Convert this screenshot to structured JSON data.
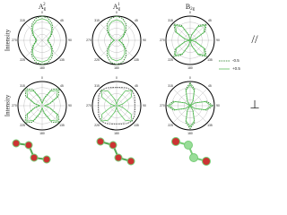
{
  "chart_data": [
    {
      "type": "polar",
      "title": "A",
      "title_sub": "g",
      "title_sup": "2",
      "ylabel": "Intensity",
      "annotation": "//",
      "theta": [
        0,
        15,
        30,
        45,
        60,
        75,
        90,
        105,
        120,
        135,
        150,
        165,
        180,
        195,
        210,
        225,
        240,
        255,
        270,
        285,
        300,
        315,
        330,
        345
      ],
      "thetaticks": [
        0,
        45,
        90,
        135,
        180,
        225,
        270,
        315
      ],
      "rlim": [
        0,
        1
      ],
      "rticks": [
        0.25,
        0.5,
        0.75,
        1
      ],
      "series": [
        {
          "name": "-0.5",
          "color": "#1f7a1f",
          "dash": true,
          "values": [
            1,
            0.95,
            0.81,
            0.63,
            0.44,
            0.3,
            0.25,
            0.3,
            0.44,
            0.63,
            0.81,
            0.95,
            1,
            0.95,
            0.81,
            0.63,
            0.44,
            0.3,
            0.25,
            0.3,
            0.44,
            0.63,
            0.81,
            0.95
          ]
        },
        {
          "name": "+0.5",
          "color": "#5cc15c",
          "dash": false,
          "values": [
            0.9,
            0.85,
            0.73,
            0.56,
            0.4,
            0.27,
            0.22,
            0.27,
            0.4,
            0.56,
            0.73,
            0.85,
            0.9,
            0.85,
            0.73,
            0.56,
            0.4,
            0.27,
            0.22,
            0.27,
            0.4,
            0.56,
            0.73,
            0.85
          ]
        }
      ]
    },
    {
      "type": "polar",
      "title": "A",
      "title_sub": "g",
      "title_sup": "1",
      "theta": [
        0,
        15,
        30,
        45,
        60,
        75,
        90,
        105,
        120,
        135,
        150,
        165,
        180,
        195,
        210,
        225,
        240,
        255,
        270,
        285,
        300,
        315,
        330,
        345
      ],
      "thetaticks": [
        0,
        45,
        90,
        135,
        180,
        225,
        270,
        315
      ],
      "rlim": [
        0,
        1
      ],
      "rticks": [
        0.25,
        0.5,
        0.75,
        1
      ],
      "series": [
        {
          "name": "-0.5",
          "color": "#1f7a1f",
          "dash": true,
          "values": [
            1,
            0.94,
            0.78,
            0.55,
            0.33,
            0.16,
            0.1,
            0.16,
            0.33,
            0.55,
            0.78,
            0.94,
            1,
            0.94,
            0.78,
            0.55,
            0.33,
            0.16,
            0.1,
            0.16,
            0.33,
            0.55,
            0.78,
            0.94
          ]
        },
        {
          "name": "+0.5",
          "color": "#5cc15c",
          "dash": false,
          "values": [
            0.85,
            0.8,
            0.66,
            0.47,
            0.28,
            0.14,
            0.08,
            0.14,
            0.28,
            0.47,
            0.66,
            0.8,
            0.85,
            0.8,
            0.66,
            0.47,
            0.28,
            0.14,
            0.08,
            0.14,
            0.28,
            0.47,
            0.66,
            0.8
          ]
        }
      ]
    },
    {
      "type": "polar",
      "title": "B",
      "title_sub": "2g",
      "legend": true,
      "theta": [
        0,
        15,
        30,
        45,
        60,
        75,
        90,
        105,
        120,
        135,
        150,
        165,
        180,
        195,
        210,
        225,
        240,
        255,
        270,
        285,
        300,
        315,
        330,
        345
      ],
      "thetaticks": [
        0,
        45,
        90,
        135,
        180,
        225,
        270,
        315
      ],
      "rlim": [
        0,
        1
      ],
      "rticks": [
        0.25,
        0.5,
        0.75,
        1
      ],
      "series": [
        {
          "name": "-0.5",
          "color": "#1f7a1f",
          "dash": true,
          "values": [
            0,
            0.24,
            0.71,
            0.95,
            0.71,
            0.24,
            0,
            0.24,
            0.71,
            0.95,
            0.71,
            0.24,
            0,
            0.24,
            0.71,
            0.95,
            0.71,
            0.24,
            0,
            0.24,
            0.71,
            0.95,
            0.71,
            0.24
          ]
        },
        {
          "name": "+0.5",
          "color": "#5cc15c",
          "dash": false,
          "values": [
            0,
            0.22,
            0.65,
            0.87,
            0.65,
            0.22,
            0,
            0.22,
            0.65,
            0.87,
            0.65,
            0.22,
            0,
            0.22,
            0.65,
            0.87,
            0.65,
            0.22,
            0,
            0.22,
            0.65,
            0.87,
            0.65,
            0.22
          ]
        }
      ]
    },
    {
      "type": "polar",
      "ylabel": "Intensity",
      "annotation": "⊥",
      "theta": [
        0,
        15,
        30,
        45,
        60,
        75,
        90,
        105,
        120,
        135,
        150,
        165,
        180,
        195,
        210,
        225,
        240,
        255,
        270,
        285,
        300,
        315,
        330,
        345
      ],
      "thetaticks": [
        0,
        45,
        90,
        135,
        180,
        225,
        270,
        315
      ],
      "rlim": [
        0,
        1
      ],
      "rticks": [
        0.25,
        0.5,
        0.75,
        1
      ],
      "series": [
        {
          "name": "-0.5",
          "color": "#1f7a1f",
          "dash": true,
          "values": [
            0.1,
            0.33,
            0.78,
            1,
            0.78,
            0.33,
            0.1,
            0.33,
            0.78,
            1,
            0.78,
            0.33,
            0.1,
            0.33,
            0.78,
            1,
            0.78,
            0.33,
            0.1,
            0.33,
            0.78,
            1,
            0.78,
            0.33
          ]
        },
        {
          "name": "+0.5",
          "color": "#5cc15c",
          "dash": false,
          "values": [
            0.08,
            0.3,
            0.7,
            0.9,
            0.7,
            0.3,
            0.08,
            0.3,
            0.7,
            0.9,
            0.7,
            0.3,
            0.08,
            0.3,
            0.7,
            0.9,
            0.7,
            0.3,
            0.08,
            0.3,
            0.7,
            0.9,
            0.7,
            0.3
          ]
        }
      ]
    },
    {
      "type": "polar",
      "theta": [
        0,
        15,
        30,
        45,
        60,
        75,
        90,
        105,
        120,
        135,
        150,
        165,
        180,
        195,
        210,
        225,
        240,
        255,
        270,
        285,
        300,
        315,
        330,
        345
      ],
      "thetaticks": [
        0,
        45,
        90,
        135,
        180,
        225,
        270,
        315
      ],
      "rlim": [
        0,
        1
      ],
      "rticks": [
        0.25,
        0.5,
        0.75,
        1
      ],
      "series": [
        {
          "name": "-0.5",
          "color": "#333333",
          "dash": true,
          "values": [
            0.75,
            0.78,
            0.85,
            0.9,
            0.85,
            0.78,
            0.75,
            0.78,
            0.85,
            0.9,
            0.85,
            0.78,
            0.75,
            0.78,
            0.85,
            0.9,
            0.85,
            0.78,
            0.75,
            0.78,
            0.85,
            0.9,
            0.85,
            0.78
          ]
        },
        {
          "name": "+0.5",
          "color": "#5cc15c",
          "dash": false,
          "values": [
            0.05,
            0.26,
            0.69,
            0.9,
            0.69,
            0.26,
            0.05,
            0.26,
            0.69,
            0.9,
            0.69,
            0.26,
            0.05,
            0.26,
            0.69,
            0.9,
            0.69,
            0.26,
            0.05,
            0.26,
            0.69,
            0.9,
            0.69,
            0.26
          ]
        }
      ]
    },
    {
      "type": "polar",
      "theta": [
        0,
        15,
        30,
        45,
        60,
        75,
        90,
        105,
        120,
        135,
        150,
        165,
        180,
        195,
        210,
        225,
        240,
        255,
        270,
        285,
        300,
        315,
        330,
        345
      ],
      "thetaticks": [
        0,
        45,
        90,
        135,
        180,
        225,
        270,
        315
      ],
      "rlim": [
        0,
        1
      ],
      "rticks": [
        0.25,
        0.5,
        0.75,
        1
      ],
      "series": [
        {
          "name": "-0.5",
          "color": "#1f7a1f",
          "dash": true,
          "values": [
            0.95,
            0.71,
            0.24,
            0,
            0.24,
            0.71,
            0.95,
            0.71,
            0.24,
            0,
            0.24,
            0.71,
            0.95,
            0.71,
            0.24,
            0,
            0.24,
            0.71,
            0.95,
            0.71,
            0.24,
            0,
            0.24,
            0.71
          ]
        },
        {
          "name": "+0.5",
          "color": "#5cc15c",
          "dash": false,
          "values": [
            0.87,
            0.65,
            0.22,
            0,
            0.22,
            0.65,
            0.87,
            0.65,
            0.22,
            0,
            0.22,
            0.65,
            0.87,
            0.65,
            0.22,
            0,
            0.22,
            0.65,
            0.87,
            0.65,
            0.22,
            0,
            0.22,
            0.65
          ]
        }
      ]
    }
  ]
}
